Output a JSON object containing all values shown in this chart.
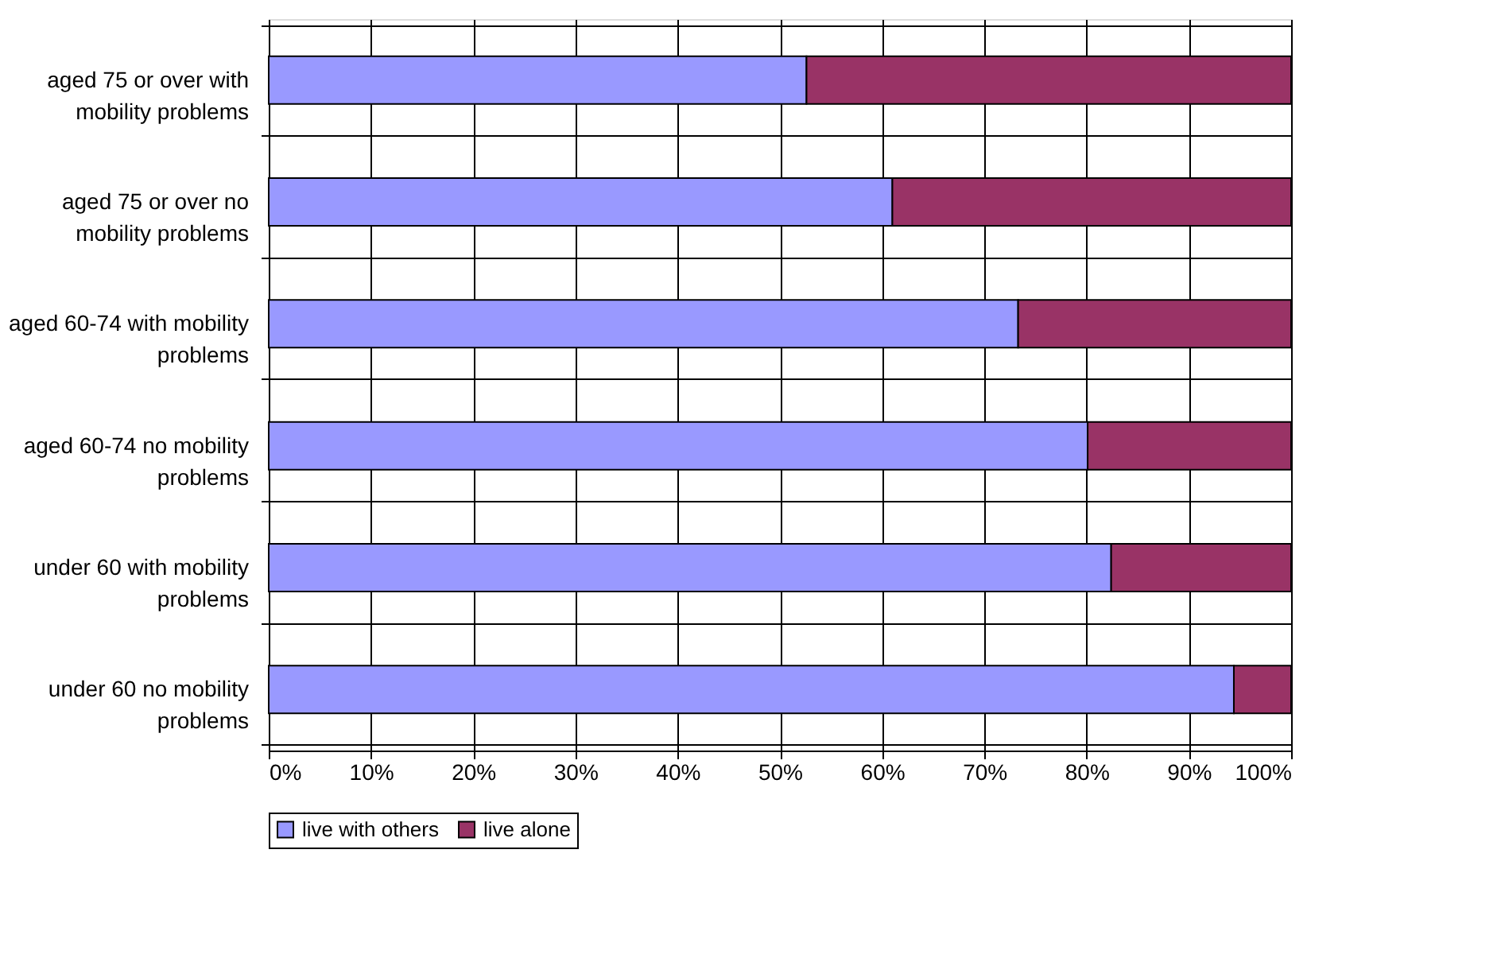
{
  "chart_data": {
    "type": "bar",
    "orientation": "horizontal",
    "stacked": true,
    "categories": [
      "aged 75 or over with mobility problems",
      "aged 75 or over no mobility problems",
      "aged 60-74 with mobility problems",
      "aged 60-74 no mobility problems",
      "under 60 with mobility problems",
      "under 60 no mobility problems"
    ],
    "series": [
      {
        "name": "live with others",
        "color": "#9999ff",
        "values": [
          52.6,
          61.0,
          73.3,
          80.1,
          82.4,
          94.4
        ]
      },
      {
        "name": "live alone",
        "color": "#993366",
        "values": [
          47.4,
          39.0,
          26.7,
          19.9,
          17.6,
          5.6
        ]
      }
    ],
    "xlim": [
      0,
      100
    ],
    "xticks": [
      {
        "value": 0,
        "label": "0%"
      },
      {
        "value": 10,
        "label": "10%"
      },
      {
        "value": 20,
        "label": "20%"
      },
      {
        "value": 30,
        "label": "30%"
      },
      {
        "value": 40,
        "label": "40%"
      },
      {
        "value": 50,
        "label": "50%"
      },
      {
        "value": 60,
        "label": "60%"
      },
      {
        "value": 70,
        "label": "70%"
      },
      {
        "value": 80,
        "label": "80%"
      },
      {
        "value": 90,
        "label": "90%"
      },
      {
        "value": 100,
        "label": "100%"
      }
    ],
    "grid": true,
    "legend": "bottom"
  }
}
